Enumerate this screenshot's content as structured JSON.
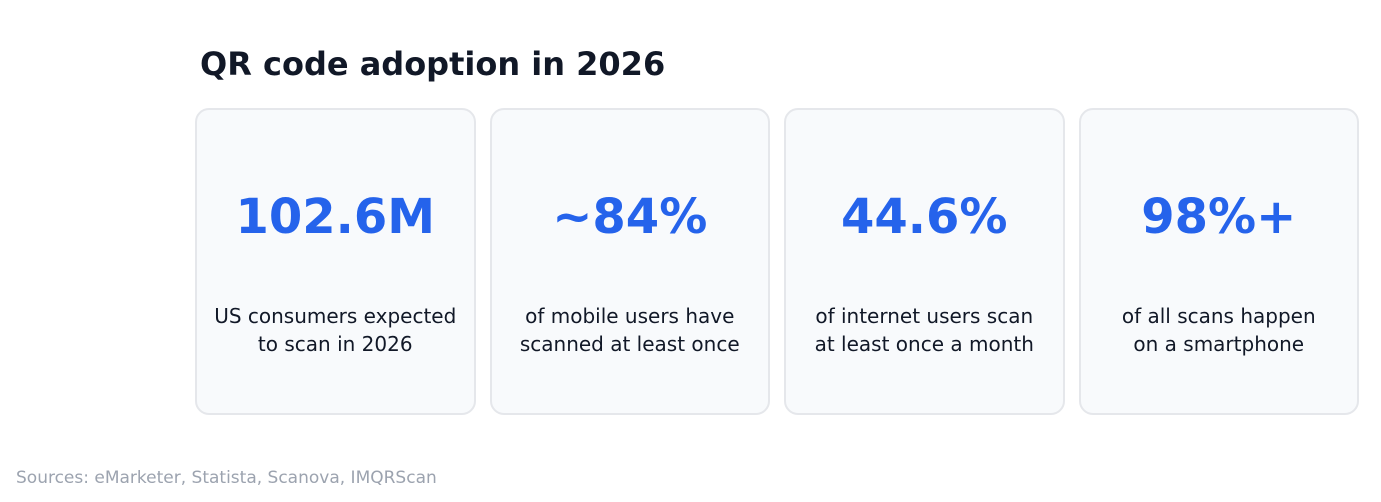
{
  "title": "QR code adoption in 2026",
  "colors": {
    "title": "#111827",
    "stat": "#2563eb",
    "card_background": "#f8fafc",
    "card_border": "#e5e7eb",
    "sources": "#9ca3af"
  },
  "chart_data": {
    "type": "table",
    "title": "QR code adoption in 2026",
    "cards": [
      {
        "value": "102.6M",
        "label_lines": [
          "US consumers expected",
          "to scan in 2026"
        ]
      },
      {
        "value": "~84%",
        "label_lines": [
          "of mobile users have",
          "scanned at least once"
        ]
      },
      {
        "value": "44.6%",
        "label_lines": [
          "of internet users scan",
          "at least once a month"
        ]
      },
      {
        "value": "98%+",
        "label_lines": [
          "of all scans happen",
          "on a smartphone"
        ]
      }
    ]
  },
  "sources": "Sources: eMarketer, Statista, Scanova, IMQRScan"
}
